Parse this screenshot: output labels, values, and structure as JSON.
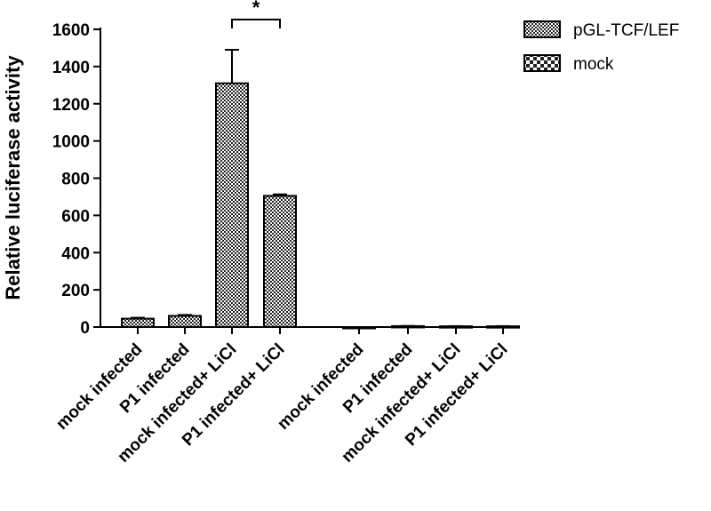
{
  "chart_data": {
    "type": "bar",
    "ylabel": "Relative luciferase activity",
    "ylim": [
      0,
      1600
    ],
    "yticks": [
      0,
      200,
      400,
      600,
      800,
      1000,
      1200,
      1400,
      1600
    ],
    "categories": [
      "mock infected",
      "P1 infected",
      "mock infected+ LiCl",
      "P1 infected+ LiCl",
      "mock infected",
      "P1 infected",
      "mock infected+ LiCl",
      "P1 infected+ LiCl"
    ],
    "values": [
      45,
      60,
      1310,
      705,
      0,
      5,
      4,
      4
    ],
    "errors": [
      5,
      5,
      180,
      8,
      0,
      1,
      1,
      1
    ],
    "series_of_bar": [
      0,
      0,
      0,
      0,
      1,
      1,
      1,
      1
    ],
    "series": [
      {
        "name": "pGL-TCF/LEF",
        "pattern": "fine-checker"
      },
      {
        "name": "mock",
        "pattern": "coarse-checker"
      }
    ],
    "legend_position": "top-right",
    "significance": {
      "between": [
        2,
        3
      ],
      "label": "*"
    },
    "grid": false
  }
}
